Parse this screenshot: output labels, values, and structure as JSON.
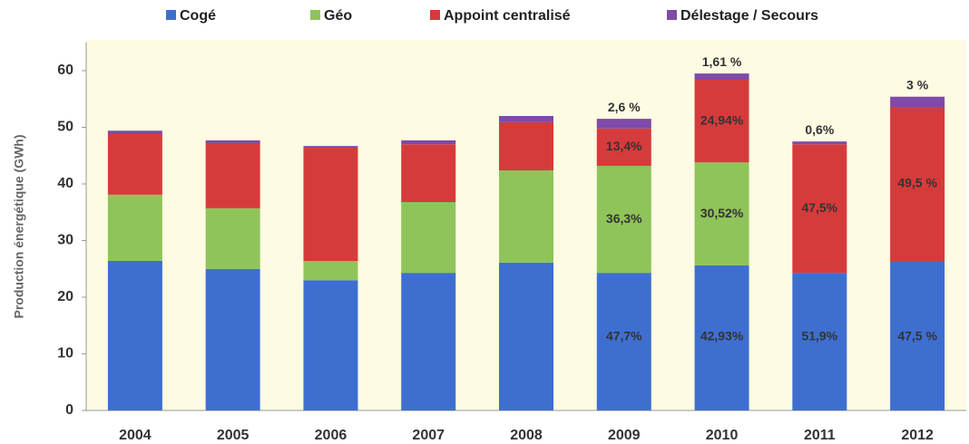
{
  "chart_data": {
    "type": "stacked_bar",
    "y_label": "Production énergétique (GWh)",
    "categories": [
      "2004",
      "2005",
      "2006",
      "2007",
      "2008",
      "2009",
      "2010",
      "2011",
      "2012"
    ],
    "series": [
      {
        "name": "Cogé",
        "color": "#3e6fd0",
        "values": [
          26.4,
          25.0,
          23.0,
          24.3,
          26.1,
          24.3,
          25.6,
          24.3,
          26.4
        ],
        "annotations": [
          null,
          null,
          null,
          null,
          null,
          "47,7%",
          "42,93%",
          "51,9%",
          "47,5 %"
        ]
      },
      {
        "name": "Géo",
        "color": "#8fc45a",
        "values": [
          11.7,
          10.7,
          3.4,
          12.5,
          16.3,
          18.9,
          18.2,
          0,
          0
        ],
        "annotations": [
          null,
          null,
          null,
          null,
          null,
          "36,3%",
          "30,52%",
          null,
          null
        ]
      },
      {
        "name": "Appoint centralisé",
        "color": "#d63b3b",
        "values": [
          10.7,
          11.5,
          20.0,
          10.2,
          8.5,
          6.6,
          14.6,
          22.7,
          27.2
        ],
        "annotations": [
          null,
          null,
          null,
          null,
          null,
          "13,4%",
          "24,94%",
          "47,5%",
          "49,5 %"
        ]
      },
      {
        "name": "Délestage / Secours",
        "color": "#7f4aa8",
        "values": [
          0.6,
          0.5,
          0.3,
          0.7,
          1.1,
          1.7,
          1.1,
          0.5,
          1.8
        ],
        "annotations": [
          null,
          null,
          null,
          null,
          null,
          "2,6 %",
          "1,61 %",
          "0,6%",
          "3 %"
        ]
      }
    ],
    "ylim": [
      0,
      65
    ],
    "yticks": [
      0,
      10,
      20,
      30,
      40,
      50,
      60
    ],
    "grid": false
  }
}
